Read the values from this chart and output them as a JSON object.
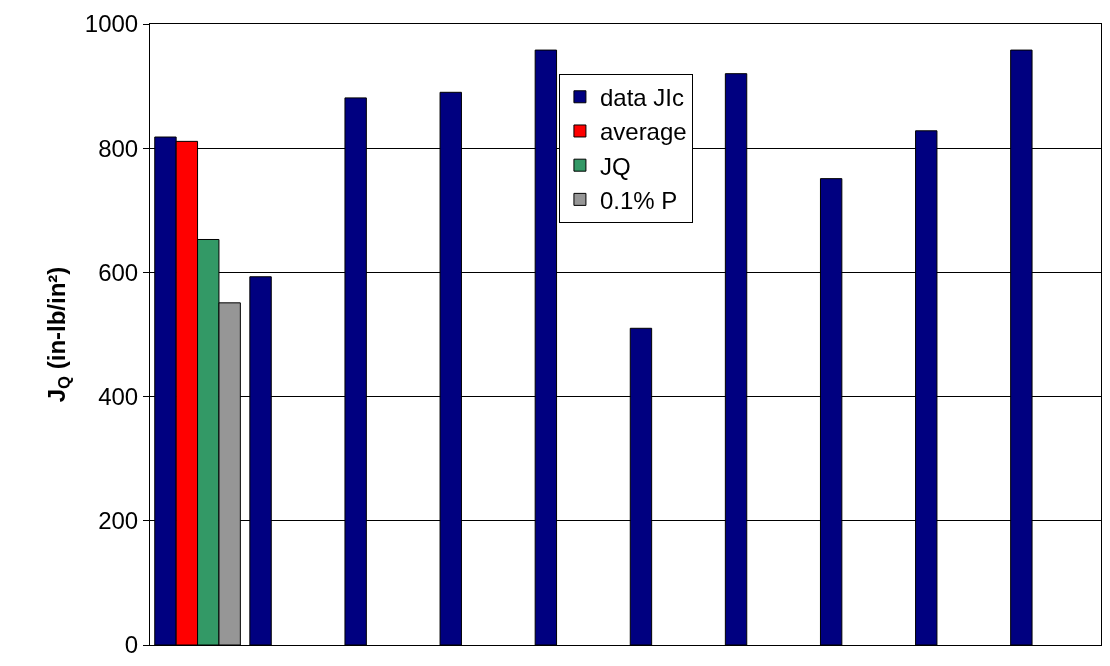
{
  "chart_data": {
    "type": "bar",
    "ylabel": "J$_{Q}$ (in-lb/in²)",
    "categories": [
      null,
      null,
      null,
      null,
      null,
      null,
      null,
      null,
      null,
      null
    ],
    "series": [
      {
        "name": "data JIc",
        "color": "#000080",
        "values": [
          818,
          593,
          881,
          890,
          958,
          510,
          920,
          751,
          828,
          958
        ]
      },
      {
        "name": "average",
        "color": "#ff0000",
        "values": [
          811,
          null,
          null,
          null,
          null,
          null,
          null,
          null,
          null,
          null
        ]
      },
      {
        "name": "JQ",
        "color": "#339966",
        "values": [
          653,
          null,
          null,
          null,
          null,
          null,
          null,
          null,
          null,
          null
        ]
      },
      {
        "name": "0.1% P",
        "color": "#969696",
        "values": [
          551,
          null,
          null,
          null,
          null,
          null,
          null,
          null,
          null,
          null
        ]
      }
    ],
    "ylim": [
      0,
      1000
    ],
    "yticks": [
      0,
      200,
      400,
      600,
      800,
      1000
    ],
    "grid": "y",
    "legend": "top"
  }
}
